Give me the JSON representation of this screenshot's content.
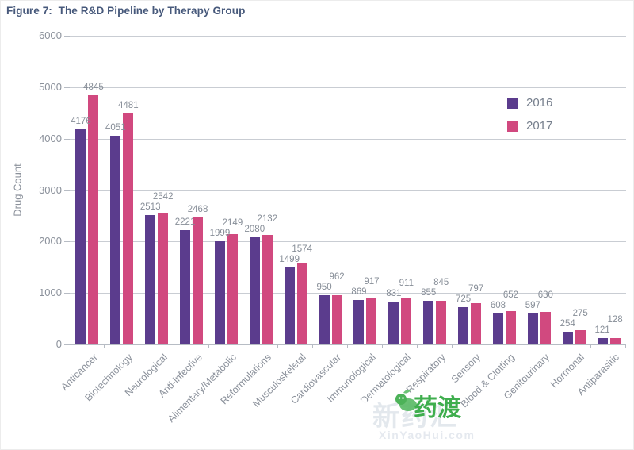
{
  "title": "Figure 7:  The R&D Pipeline by Therapy Group",
  "chart_data": {
    "type": "bar",
    "title": "The R&D Pipeline by Therapy Group",
    "xlabel": "",
    "ylabel": "Drug Count",
    "ylim": [
      0,
      6000
    ],
    "yticks": [
      0,
      1000,
      2000,
      3000,
      4000,
      5000,
      6000
    ],
    "grid": true,
    "legend_position": "top-right",
    "categories": [
      "Anticancer",
      "Biotechnology",
      "Neurological",
      "Anti-infective",
      "Alimentary/Metabolic",
      "Reformulations",
      "Musculoskeletal",
      "Cardiovascular",
      "Immunological",
      "Dermatological",
      "Respiratory",
      "Sensory",
      "Blood & Clotting",
      "Genitourinary",
      "Hormonal",
      "Antiparasitic"
    ],
    "series": [
      {
        "name": "2016",
        "color": "#5b3c8d",
        "values": [
          4176,
          4051,
          2513,
          2221,
          1999,
          2080,
          1499,
          950,
          869,
          831,
          855,
          725,
          608,
          597,
          254,
          121
        ]
      },
      {
        "name": "2017",
        "color": "#d1497f",
        "values": [
          4845,
          4481,
          2542,
          2468,
          2149,
          2132,
          1574,
          962,
          917,
          911,
          845,
          797,
          652,
          630,
          275,
          128
        ]
      }
    ]
  },
  "colors": {
    "title_text": "#47597b",
    "gridline": "#c9cdd3",
    "axis": "#b7bcc4",
    "tick_text": "#8b919b",
    "value_text": "#868d97",
    "legend_text": "#757e8c",
    "watermark_green": "#3fae4e"
  },
  "icons": {
    "clover_logo": "four-petal white clover",
    "sprout": "green caterpillar-sprout mascot"
  },
  "watermark": {
    "faded_text": "新药汇",
    "url": "XinYaoHui.com",
    "brand": "药渡"
  }
}
